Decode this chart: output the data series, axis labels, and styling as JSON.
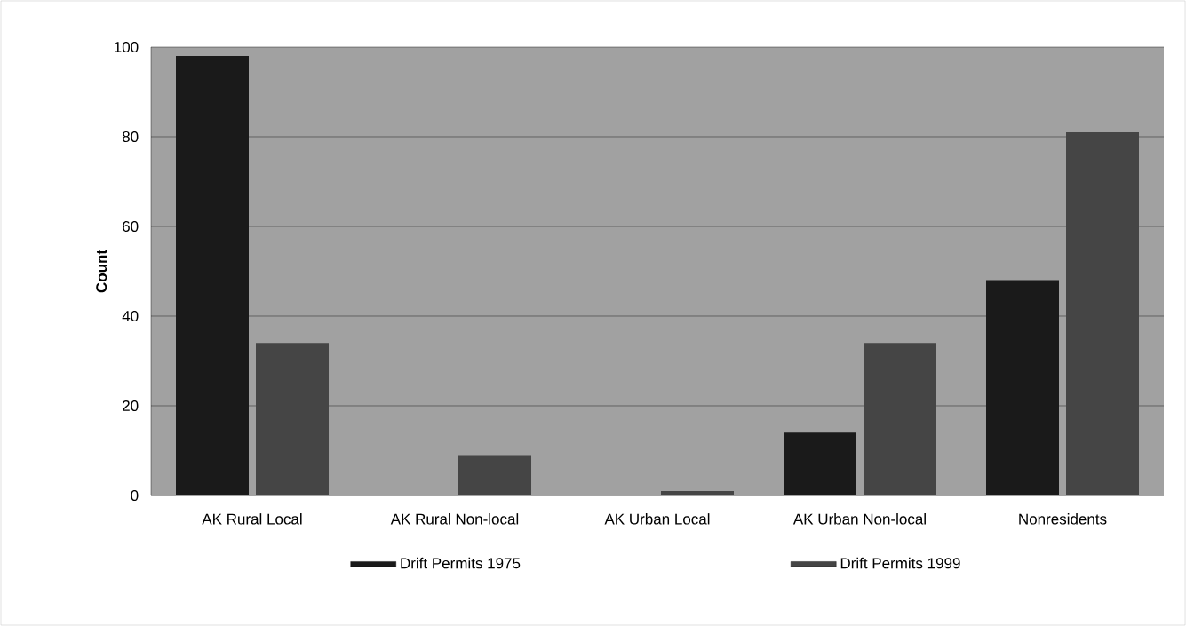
{
  "chart_data": {
    "type": "bar",
    "ylabel": "Count",
    "categories": [
      "AK Rural Local",
      "AK Rural Non-local",
      "AK Urban Local",
      "AK Urban Non-local",
      "Nonresidents"
    ],
    "series": [
      {
        "name": "Drift Permits 1975",
        "color": "#1a1a1a",
        "values": [
          98,
          0,
          0,
          14,
          48
        ]
      },
      {
        "name": "Drift Permits 1999",
        "color": "#454545",
        "values": [
          34,
          9,
          1,
          34,
          81
        ]
      }
    ],
    "ylim": [
      0,
      100
    ],
    "yticks": [
      0,
      20,
      40,
      60,
      80,
      100
    ],
    "grid": "y",
    "legend": "bottom"
  }
}
